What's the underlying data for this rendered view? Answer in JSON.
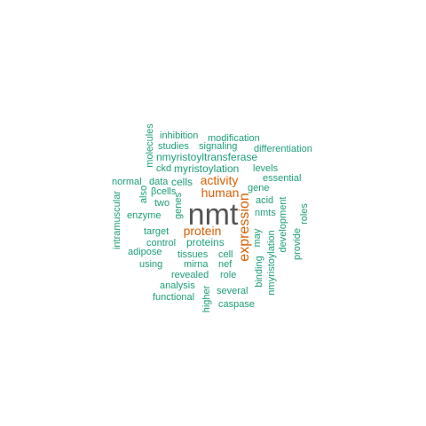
{
  "colors": {
    "primary": "#555555",
    "secondary": "#d95f02",
    "tertiary": "#1b9e77"
  },
  "words": [
    {
      "text": "nmt",
      "tier": "primary"
    },
    {
      "text": "expression",
      "tier": "secondary"
    },
    {
      "text": "activity",
      "tier": "secondary"
    },
    {
      "text": "human",
      "tier": "secondary"
    },
    {
      "text": "protein",
      "tier": "secondary"
    },
    {
      "text": "inhibition",
      "tier": "tertiary"
    },
    {
      "text": "modification",
      "tier": "tertiary"
    },
    {
      "text": "molecules",
      "tier": "tertiary"
    },
    {
      "text": "studies",
      "tier": "tertiary"
    },
    {
      "text": "signaling",
      "tier": "tertiary"
    },
    {
      "text": "differentiation",
      "tier": "tertiary"
    },
    {
      "text": "nmyristoyltransferase",
      "tier": "tertiary"
    },
    {
      "text": "ckd",
      "tier": "tertiary"
    },
    {
      "text": "myristoylation",
      "tier": "tertiary"
    },
    {
      "text": "levels",
      "tier": "tertiary"
    },
    {
      "text": "essential",
      "tier": "tertiary"
    },
    {
      "text": "normal",
      "tier": "tertiary"
    },
    {
      "text": "data",
      "tier": "tertiary"
    },
    {
      "text": "cells",
      "tier": "tertiary"
    },
    {
      "text": "gene",
      "tier": "tertiary"
    },
    {
      "text": "also",
      "tier": "tertiary"
    },
    {
      "text": "βcells",
      "tier": "tertiary"
    },
    {
      "text": "acid",
      "tier": "tertiary"
    },
    {
      "text": "two",
      "tier": "tertiary"
    },
    {
      "text": "genes",
      "tier": "tertiary"
    },
    {
      "text": "roles",
      "tier": "tertiary"
    },
    {
      "text": "enzyme",
      "tier": "tertiary"
    },
    {
      "text": "nmts",
      "tier": "tertiary"
    },
    {
      "text": "intramuscular",
      "tier": "tertiary"
    },
    {
      "text": "development",
      "tier": "tertiary"
    },
    {
      "text": "target",
      "tier": "tertiary"
    },
    {
      "text": "may",
      "tier": "tertiary"
    },
    {
      "text": "provide",
      "tier": "tertiary"
    },
    {
      "text": "control",
      "tier": "tertiary"
    },
    {
      "text": "proteins",
      "tier": "tertiary"
    },
    {
      "text": "adipose",
      "tier": "tertiary"
    },
    {
      "text": "tissues",
      "tier": "tertiary"
    },
    {
      "text": "cell",
      "tier": "tertiary"
    },
    {
      "text": "using",
      "tier": "tertiary"
    },
    {
      "text": "mirna",
      "tier": "tertiary"
    },
    {
      "text": "nef",
      "tier": "tertiary"
    },
    {
      "text": "binding",
      "tier": "tertiary"
    },
    {
      "text": "nmyristoylation",
      "tier": "tertiary"
    },
    {
      "text": "revealed",
      "tier": "tertiary"
    },
    {
      "text": "role",
      "tier": "tertiary"
    },
    {
      "text": "analysis",
      "tier": "tertiary"
    },
    {
      "text": "several",
      "tier": "tertiary"
    },
    {
      "text": "functional",
      "tier": "tertiary"
    },
    {
      "text": "higher",
      "tier": "tertiary"
    },
    {
      "text": "caspase",
      "tier": "tertiary"
    }
  ]
}
